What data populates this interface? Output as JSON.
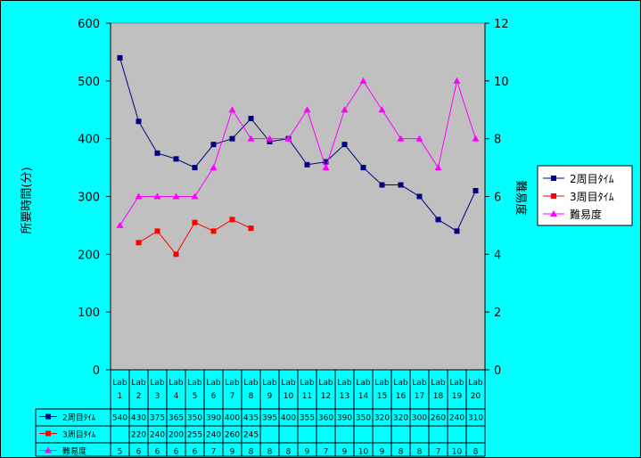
{
  "chart_data": {
    "type": "line",
    "categories": [
      "Lab 1",
      "Lab 2",
      "Lab 3",
      "Lab 4",
      "Lab 5",
      "Lab 6",
      "Lab 7",
      "Lab 8",
      "Lab 9",
      "Lab 10",
      "Lab 11",
      "Lab 12",
      "Lab 13",
      "Lab 14",
      "Lab 15",
      "Lab 16",
      "Lab 17",
      "Lab 18",
      "Lab 19",
      "Lab 20"
    ],
    "cat_lines": [
      [
        "Lab",
        "1"
      ],
      [
        "Lab",
        "2"
      ],
      [
        "Lab",
        "3"
      ],
      [
        "Lab",
        "4"
      ],
      [
        "Lab",
        "5"
      ],
      [
        "Lab",
        "6"
      ],
      [
        "Lab",
        "7"
      ],
      [
        "Lab",
        "8"
      ],
      [
        "Lab",
        "9"
      ],
      [
        "Lab",
        "10"
      ],
      [
        "Lab",
        "11"
      ],
      [
        "Lab",
        "12"
      ],
      [
        "Lab",
        "13"
      ],
      [
        "Lab",
        "14"
      ],
      [
        "Lab",
        "15"
      ],
      [
        "Lab",
        "16"
      ],
      [
        "Lab",
        "17"
      ],
      [
        "Lab",
        "18"
      ],
      [
        "Lab",
        "19"
      ],
      [
        "Lab",
        "20"
      ]
    ],
    "series": [
      {
        "name": "2周目ﾀｲﾑ",
        "axis": "left",
        "color": "#000080",
        "marker": "square",
        "values": [
          540,
          430,
          375,
          365,
          350,
          390,
          400,
          435,
          395,
          400,
          355,
          360,
          390,
          350,
          320,
          320,
          300,
          260,
          240,
          310
        ]
      },
      {
        "name": "3周目ﾀｲﾑ",
        "axis": "left",
        "color": "#ff0000",
        "marker": "square",
        "values": [
          null,
          220,
          240,
          200,
          255,
          240,
          260,
          245,
          null,
          null,
          null,
          null,
          null,
          null,
          null,
          null,
          null,
          null,
          null,
          null
        ]
      },
      {
        "name": "難易度",
        "axis": "right",
        "color": "#ff00ff",
        "marker": "triangle",
        "values": [
          5,
          6,
          6,
          6,
          6,
          7,
          9,
          8,
          8,
          8,
          9,
          7,
          9,
          10,
          9,
          8,
          8,
          7,
          10,
          8
        ]
      }
    ],
    "ylabel": "所要時間(分)",
    "y2label": "難易度",
    "ylim": [
      0,
      600
    ],
    "y2lim": [
      0,
      12
    ],
    "yticks": [
      "0",
      "100",
      "200",
      "300",
      "400",
      "500",
      "600"
    ],
    "y2ticks": [
      "0",
      "2",
      "4",
      "6",
      "8",
      "10",
      "12"
    ],
    "plot_bg": "#c0c0c0",
    "frame_bg": "#00ffff",
    "legend_position": "right",
    "data_table": true
  }
}
